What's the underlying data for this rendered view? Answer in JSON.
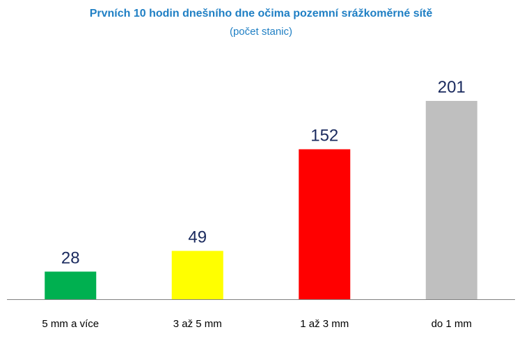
{
  "chart_data": {
    "type": "bar",
    "title": "Prvních 10 hodin dnešního dne očima pozemní srážkoměrné sítě",
    "subtitle": "(počet stanic)",
    "categories": [
      "5 mm a více",
      "3 až 5 mm",
      "1 až 3 mm",
      "do 1 mm"
    ],
    "values": [
      28,
      49,
      152,
      201
    ],
    "colors": [
      "#00b050",
      "#ffff00",
      "#ff0000",
      "#bfbfbf"
    ],
    "value_label_color": "#1a2a5e",
    "title_color": "#1f7fc4",
    "ylim": [
      0,
      215
    ],
    "grid": false,
    "legend": "none",
    "show_value_labels": true
  }
}
